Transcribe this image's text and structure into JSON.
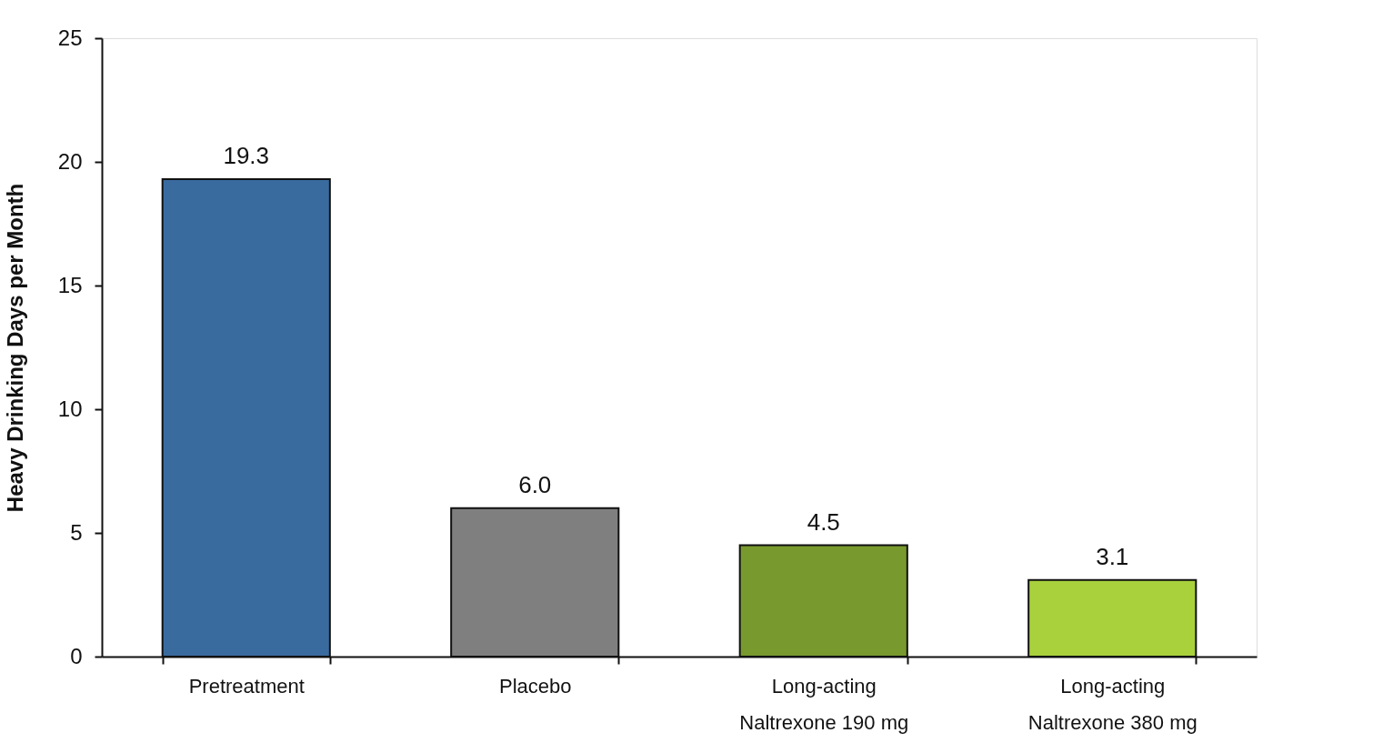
{
  "chart_data": {
    "type": "bar",
    "ylabel": "Heavy Drinking Days per Month",
    "categories": [
      "Pretreatment",
      "Placebo",
      "Long-acting Naltrexone 190 mg",
      "Long-acting Naltrexone 380 mg"
    ],
    "values": [
      19.3,
      6.0,
      4.5,
      3.1
    ],
    "colors": [
      "#3a6b9f",
      "#7f7f7f",
      "#78992e",
      "#a8d13c"
    ],
    "value_labels": [
      "19.3",
      "6.0",
      "4.5",
      "3.1"
    ],
    "ylim": [
      0,
      25
    ],
    "yticks": [
      0,
      5,
      10,
      15,
      20,
      25
    ],
    "grid": false
  }
}
